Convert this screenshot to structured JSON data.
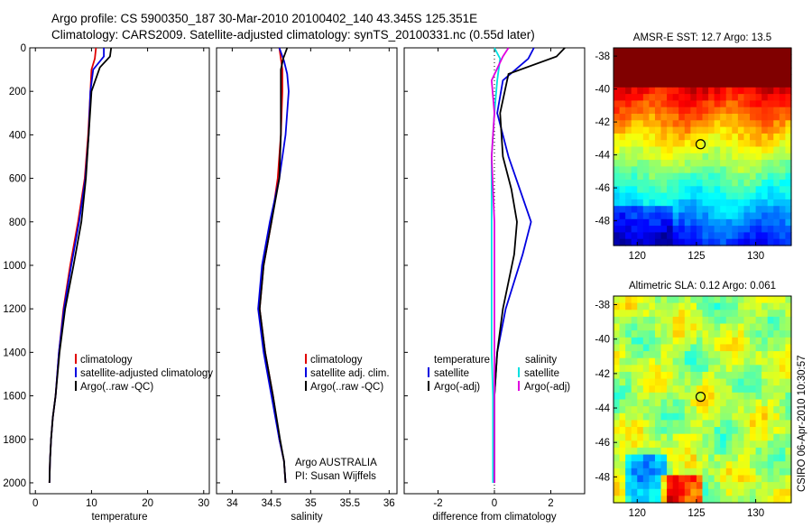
{
  "header": {
    "line1": "Argo profile: CS 5900350_187 30-Mar-2010 20100402_140 43.345S 125.351E",
    "line2": "Climatology: CARS2009. Satellite-adjusted climatology: synTS_20100331.nc (0.55d later)"
  },
  "colors": {
    "climatology": "#e00000",
    "satellite": "#0000e0",
    "argo": "#000000",
    "satellite_cyan": "#00e0e0",
    "argo_magenta": "#e000e0"
  },
  "chart_data": [
    {
      "type": "line",
      "panel": "temperature",
      "xlabel": "temperature",
      "xlim": [
        -1,
        31
      ],
      "ylim": [
        0,
        2050
      ],
      "y_reversed": true,
      "xticks": [
        "0",
        "10",
        "20",
        "30"
      ],
      "yticks": [
        "0",
        "200",
        "400",
        "600",
        "800",
        "1000",
        "1200",
        "1400",
        "1600",
        "1800",
        "2000"
      ],
      "legend": [
        "climatology",
        "satellite-adjusted climatology",
        "Argo(..raw -QC)"
      ],
      "series": [
        {
          "name": "climatology",
          "color": "#e00000",
          "x": [
            10.8,
            10.6,
            10.0,
            9.8,
            9.4,
            8.8,
            7.6,
            6.2,
            5.0,
            4.2,
            3.6,
            3.1,
            2.8,
            2.6,
            2.5
          ],
          "y": [
            0,
            50,
            100,
            200,
            400,
            600,
            800,
            1000,
            1200,
            1400,
            1600,
            1700,
            1800,
            1900,
            2000
          ]
        },
        {
          "name": "satellite-adjusted climatology",
          "color": "#0000e0",
          "x": [
            12.2,
            12.2,
            10.3,
            9.8,
            9.5,
            8.9,
            7.8,
            6.4,
            5.1,
            4.2,
            3.6,
            3.1,
            2.8,
            2.6,
            2.5
          ],
          "y": [
            0,
            40,
            100,
            200,
            400,
            600,
            800,
            1000,
            1200,
            1400,
            1600,
            1700,
            1800,
            1900,
            2000
          ]
        },
        {
          "name": "Argo(..raw -QC)",
          "color": "#000000",
          "x": [
            13.5,
            13.3,
            11.5,
            10.0,
            9.5,
            9.0,
            8.2,
            6.8,
            5.3,
            4.3,
            3.6,
            3.1,
            2.8,
            2.6,
            2.5
          ],
          "y": [
            0,
            40,
            90,
            200,
            400,
            600,
            800,
            1000,
            1200,
            1400,
            1600,
            1700,
            1800,
            1900,
            2000
          ]
        }
      ]
    },
    {
      "type": "line",
      "panel": "salinity",
      "xlabel": "salinity",
      "xlim": [
        33.8,
        36.1
      ],
      "ylim": [
        0,
        2050
      ],
      "y_reversed": true,
      "xticks": [
        "34",
        "34.5",
        "35",
        "35.5",
        "36"
      ],
      "legend": [
        "climatology",
        "satellite adj. clim.",
        "Argo(..raw -QC)"
      ],
      "annotation": [
        "Argo AUSTRALIA",
        "PI: Susan Wijffels"
      ],
      "series": [
        {
          "name": "climatology",
          "color": "#e00000",
          "x": [
            34.6,
            34.62,
            34.64,
            34.64,
            34.62,
            34.58,
            34.5,
            34.4,
            34.35,
            34.42,
            34.52,
            34.6,
            34.66,
            34.68
          ],
          "y": [
            0,
            50,
            100,
            200,
            400,
            600,
            800,
            1000,
            1200,
            1400,
            1600,
            1800,
            1900,
            2000
          ]
        },
        {
          "name": "satellite adj. clim.",
          "color": "#0000e0",
          "x": [
            34.6,
            34.66,
            34.7,
            34.72,
            34.68,
            34.6,
            34.48,
            34.38,
            34.33,
            34.4,
            34.5,
            34.6,
            34.66,
            34.68
          ],
          "y": [
            0,
            60,
            120,
            200,
            400,
            600,
            800,
            1000,
            1200,
            1400,
            1600,
            1800,
            1900,
            2000
          ]
        },
        {
          "name": "Argo(..raw -QC)",
          "color": "#000000",
          "x": [
            34.7,
            34.65,
            34.62,
            34.62,
            34.62,
            34.6,
            34.5,
            34.4,
            34.35,
            34.42,
            34.52,
            34.61,
            34.66,
            34.68
          ],
          "y": [
            0,
            50,
            100,
            200,
            400,
            600,
            800,
            1000,
            1200,
            1400,
            1600,
            1800,
            1900,
            2000
          ]
        }
      ]
    },
    {
      "type": "line",
      "panel": "difference",
      "xlabel": "difference from climatology",
      "xlim": [
        -3.2,
        3.2
      ],
      "ylim": [
        0,
        2050
      ],
      "y_reversed": true,
      "xticks": [
        "-2",
        "0",
        "2"
      ],
      "legend": [
        "temperature",
        "satellite",
        "Argo(-adj)",
        "salinity",
        "satellite",
        "Argo(-adj)"
      ],
      "series": [
        {
          "name": "temperature satellite",
          "color": "#0000e0",
          "x": [
            1.4,
            1.2,
            0.3,
            0.1,
            0.5,
            0.9,
            1.3,
            1.0,
            0.4,
            0.1,
            0.0,
            0.0,
            0.0
          ],
          "y": [
            0,
            50,
            150,
            300,
            500,
            650,
            800,
            950,
            1200,
            1400,
            1600,
            1800,
            2000
          ]
        },
        {
          "name": "temperature Argo(-adj)",
          "color": "#000000",
          "x": [
            2.5,
            2.2,
            0.5,
            0.2,
            0.3,
            0.6,
            0.8,
            0.7,
            0.3,
            0.1,
            0.0,
            0.0,
            0.0
          ],
          "y": [
            0,
            40,
            120,
            300,
            500,
            650,
            800,
            950,
            1200,
            1400,
            1600,
            1800,
            2000
          ]
        },
        {
          "name": "salinity satellite",
          "color": "#00e0e0",
          "x": [
            0.0,
            0.2,
            0.1,
            0.0,
            -0.1,
            -0.1,
            -0.1,
            -0.1,
            -0.1,
            -0.1,
            -0.05,
            -0.05,
            -0.05
          ],
          "y": [
            0,
            50,
            150,
            300,
            500,
            650,
            800,
            950,
            1200,
            1400,
            1600,
            1800,
            2000
          ]
        },
        {
          "name": "salinity Argo(-adj)",
          "color": "#e000e0",
          "x": [
            0.5,
            0.3,
            -0.1,
            0.0,
            -0.1,
            -0.05,
            0.0,
            0.0,
            0.0,
            0.0,
            0.0,
            0.0,
            0.0
          ],
          "y": [
            0,
            40,
            150,
            300,
            500,
            650,
            800,
            950,
            1200,
            1400,
            1600,
            1800,
            2000
          ]
        }
      ]
    },
    {
      "type": "heatmap",
      "panel": "sst_map",
      "title": "AMSR-E SST: 12.7 Argo: 13.5",
      "xlim": [
        118,
        133
      ],
      "ylim": [
        -49.5,
        -37.5
      ],
      "xticks": [
        "120",
        "125",
        "130"
      ],
      "yticks": [
        "-38",
        "-40",
        "-42",
        "-44",
        "-46",
        "-48"
      ],
      "marker": {
        "lon": 125.35,
        "lat": -43.35
      }
    },
    {
      "type": "heatmap",
      "panel": "sla_map",
      "title": "Altimetric SLA: 0.12 Argo: 0.061",
      "xlim": [
        118,
        133
      ],
      "ylim": [
        -49.5,
        -37.5
      ],
      "xticks": [
        "120",
        "125",
        "130"
      ],
      "yticks": [
        "-38",
        "-40",
        "-42",
        "-44",
        "-46",
        "-48"
      ],
      "marker": {
        "lon": 125.35,
        "lat": -43.35
      }
    }
  ],
  "footer": {
    "credit": "CSIRO 06-Apr-2010 10:30:57"
  }
}
